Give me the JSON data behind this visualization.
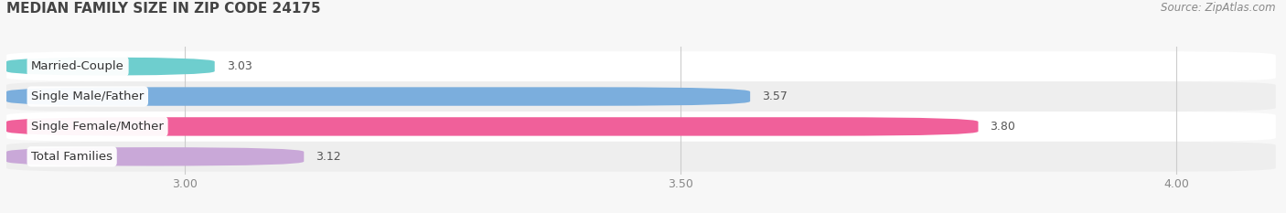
{
  "title": "MEDIAN FAMILY SIZE IN ZIP CODE 24175",
  "source": "Source: ZipAtlas.com",
  "categories": [
    "Married-Couple",
    "Single Male/Father",
    "Single Female/Mother",
    "Total Families"
  ],
  "values": [
    3.03,
    3.57,
    3.8,
    3.12
  ],
  "bar_colors": [
    "#6ecece",
    "#7baedd",
    "#f0609a",
    "#c9a8d8"
  ],
  "xlim": [
    2.82,
    4.1
  ],
  "xticks": [
    3.0,
    3.5,
    4.0
  ],
  "bar_height": 0.62,
  "background_color": "#f7f7f7",
  "row_bg_light": "#ffffff",
  "row_bg_dark": "#eeeeee",
  "title_fontsize": 11,
  "label_fontsize": 9.5,
  "value_fontsize": 9,
  "source_fontsize": 8.5,
  "grid_color": "#cccccc",
  "value_color": "#555555",
  "label_text_color": "#333333",
  "tick_color": "#888888"
}
